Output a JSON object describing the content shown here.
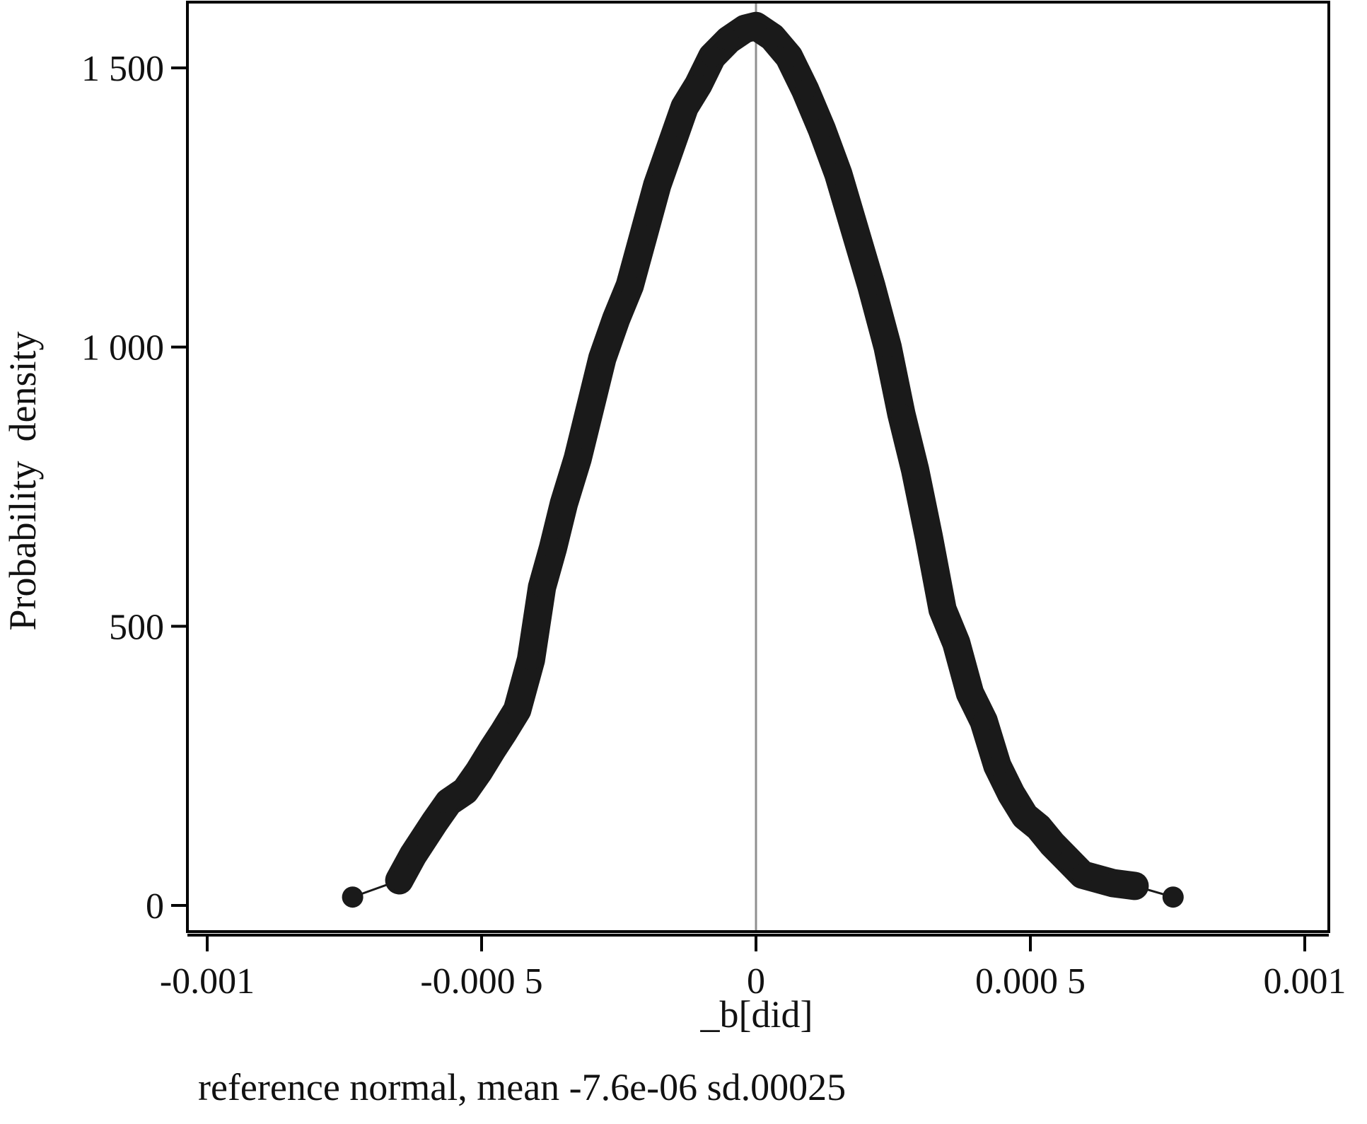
{
  "chart_data": {
    "type": "scatter",
    "xlabel": "_b[did]",
    "ylabel": "Probability  density",
    "note": "reference normal, mean -7.6e-06 sd.00025",
    "xlim": [
      -0.00105,
      0.00103
    ],
    "ylim": [
      -50,
      1620
    ],
    "x_ticks": [
      {
        "value": -0.001,
        "label": "-0.001"
      },
      {
        "value": -0.0005,
        "label": "-0.000 5"
      },
      {
        "value": 0,
        "label": "0"
      },
      {
        "value": 0.0005,
        "label": "0.000 5"
      },
      {
        "value": 0.001,
        "label": "0.001"
      }
    ],
    "y_ticks": [
      {
        "value": 0,
        "label": "0"
      },
      {
        "value": 500,
        "label": "500"
      },
      {
        "value": 1000,
        "label": "1 000"
      },
      {
        "value": 1500,
        "label": "1 500"
      }
    ],
    "reference_line_x": 0,
    "grid": false,
    "colors": {
      "marker": "#1a1a1a",
      "reference_line": "#909090",
      "frame": "#000000"
    },
    "series": [
      {
        "x": [
          -0.000735,
          -0.00065,
          -0.000625,
          -0.000585,
          -0.00056,
          -0.00053,
          -0.000505,
          -0.00048,
          -0.00046,
          -0.000435,
          -0.00041,
          -0.00039,
          -0.00037,
          -0.00035,
          -0.000325,
          -0.0003,
          -0.00028,
          -0.000255,
          -0.00023,
          -0.000205,
          -0.00018,
          -0.000155,
          -0.00013,
          -0.000105,
          -8e-05,
          -5e-05,
          -2e-05,
          0,
          3e-05,
          6e-05,
          9e-05,
          0.00012,
          0.00015,
          0.00018,
          0.00021,
          0.00024,
          0.000265,
          0.00029,
          0.000315,
          0.00034,
          0.000365,
          0.00039,
          0.000415,
          0.00044,
          0.000465,
          0.00049,
          0.000515,
          0.00054,
          0.00057,
          0.000595,
          0.00065,
          0.00069,
          0.00076
        ],
        "y": [
          15,
          45,
          90,
          150,
          185,
          205,
          240,
          280,
          310,
          350,
          440,
          570,
          640,
          720,
          800,
          900,
          980,
          1050,
          1110,
          1200,
          1290,
          1360,
          1430,
          1470,
          1520,
          1550,
          1570,
          1575,
          1555,
          1520,
          1460,
          1390,
          1310,
          1210,
          1110,
          1000,
          880,
          780,
          660,
          530,
          470,
          380,
          330,
          250,
          200,
          160,
          140,
          110,
          80,
          55,
          40,
          35,
          15
        ]
      }
    ]
  }
}
